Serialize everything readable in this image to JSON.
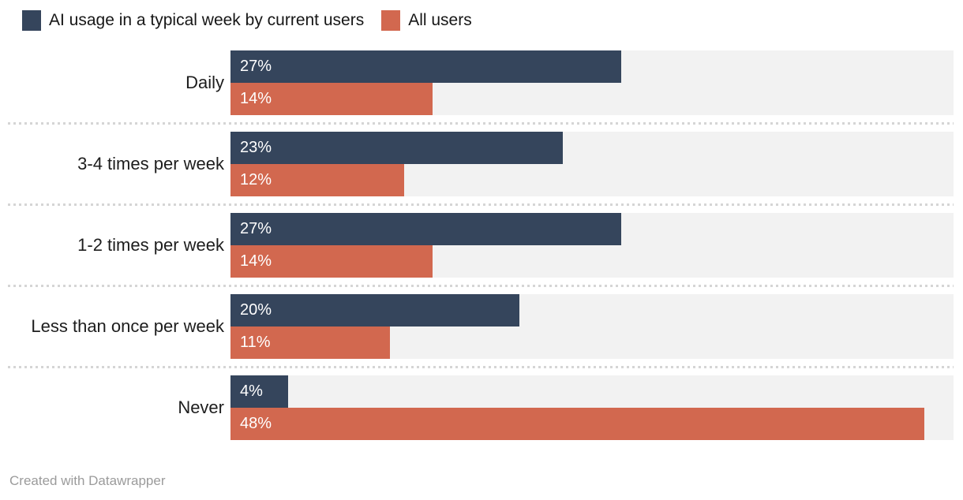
{
  "legend": {
    "items": [
      {
        "label": "AI usage in a typical week by current users",
        "color": "#35455c"
      },
      {
        "label": "All users",
        "color": "#d2684f"
      }
    ]
  },
  "chart_data": {
    "type": "bar",
    "orientation": "horizontal",
    "categories": [
      "Daily",
      "3-4 times per week",
      "1-2 times per week",
      "Less than once per week",
      "Never"
    ],
    "series": [
      {
        "name": "AI usage in a typical week by current users",
        "color": "#35455c",
        "values": [
          27,
          23,
          27,
          20,
          4
        ]
      },
      {
        "name": "All users",
        "color": "#d2684f",
        "values": [
          14,
          12,
          14,
          11,
          48
        ]
      }
    ],
    "value_suffix": "%",
    "xlim": [
      0,
      50
    ],
    "grid": false,
    "legend_position": "top-left",
    "track_color": "#f2f2f2",
    "value_label_color": "#ffffff"
  },
  "footer": {
    "credit": "Created with Datawrapper"
  }
}
